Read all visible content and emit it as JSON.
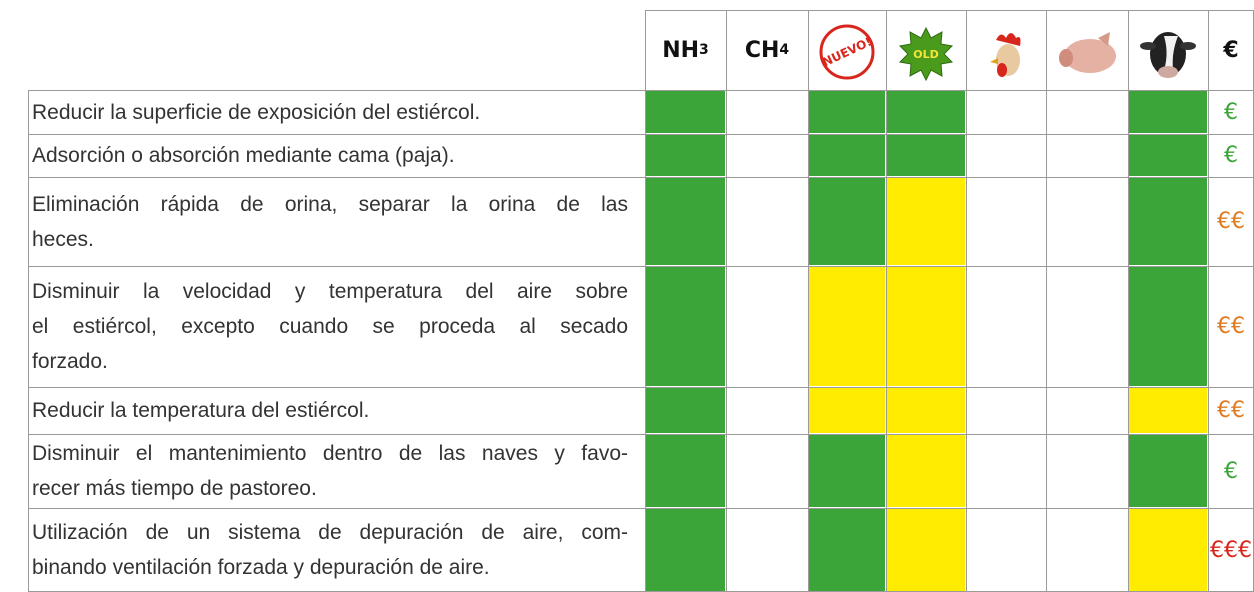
{
  "header": {
    "nh3": {
      "main": "NH",
      "sub": "3"
    },
    "ch4": {
      "main": "CH",
      "sub": "4"
    },
    "new_icon": "NUEVO!",
    "old_icon": "OLD",
    "cost": "€"
  },
  "rows": [
    {
      "lines": [
        "Reducir la superficie de exposición del estiércol."
      ],
      "cells": [
        "#3ca53a",
        "#ffffff",
        "#3ca53a",
        "#3ca53a",
        "#ffffff",
        "#ffffff",
        "#3ca53a"
      ],
      "cost": "€",
      "cost_color": "#3ca53a"
    },
    {
      "lines": [
        "Adsorción o absorción mediante cama (paja)."
      ],
      "cells": [
        "#3ca53a",
        "#ffffff",
        "#3ca53a",
        "#3ca53a",
        "#ffffff",
        "#ffffff",
        "#3ca53a"
      ],
      "cost": "€",
      "cost_color": "#3ca53a"
    },
    {
      "lines": [
        "Eliminación rápida de orina, separar la orina de las",
        "heces."
      ],
      "cells": [
        "#3ca53a",
        "#ffffff",
        "#3ca53a",
        "#ffec00",
        "#ffffff",
        "#ffffff",
        "#3ca53a"
      ],
      "cost": "€€",
      "cost_color": "#e07b22"
    },
    {
      "lines": [
        "Disminuir la velocidad y temperatura del aire sobre",
        "el estiércol, excepto cuando se proceda al secado",
        "forzado."
      ],
      "cells": [
        "#3ca53a",
        "#ffffff",
        "#ffec00",
        "#ffec00",
        "#ffffff",
        "#ffffff",
        "#3ca53a"
      ],
      "cost": "€€",
      "cost_color": "#e07b22"
    },
    {
      "lines": [
        "Reducir la temperatura del estiércol."
      ],
      "cells": [
        "#3ca53a",
        "#ffffff",
        "#ffec00",
        "#ffec00",
        "#ffffff",
        "#ffffff",
        "#ffec00"
      ],
      "cost": "€€",
      "cost_color": "#e07b22"
    },
    {
      "lines": [
        "Disminuir el mantenimiento dentro de las naves y favo-",
        "recer más tiempo de pastoreo."
      ],
      "cells": [
        "#3ca53a",
        "#ffffff",
        "#3ca53a",
        "#ffec00",
        "#ffffff",
        "#ffffff",
        "#3ca53a"
      ],
      "cost": "€",
      "cost_color": "#3ca53a"
    },
    {
      "lines": [
        "Utilización de un sistema de depuración de aire, com-",
        "binando ventilación forzada y depuración de aire."
      ],
      "cells": [
        "#3ca53a",
        "#ffffff",
        "#3ca53a",
        "#ffec00",
        "#ffffff",
        "#ffffff",
        "#ffec00"
      ],
      "cost": "€€€",
      "cost_color": "#d9261c"
    }
  ]
}
